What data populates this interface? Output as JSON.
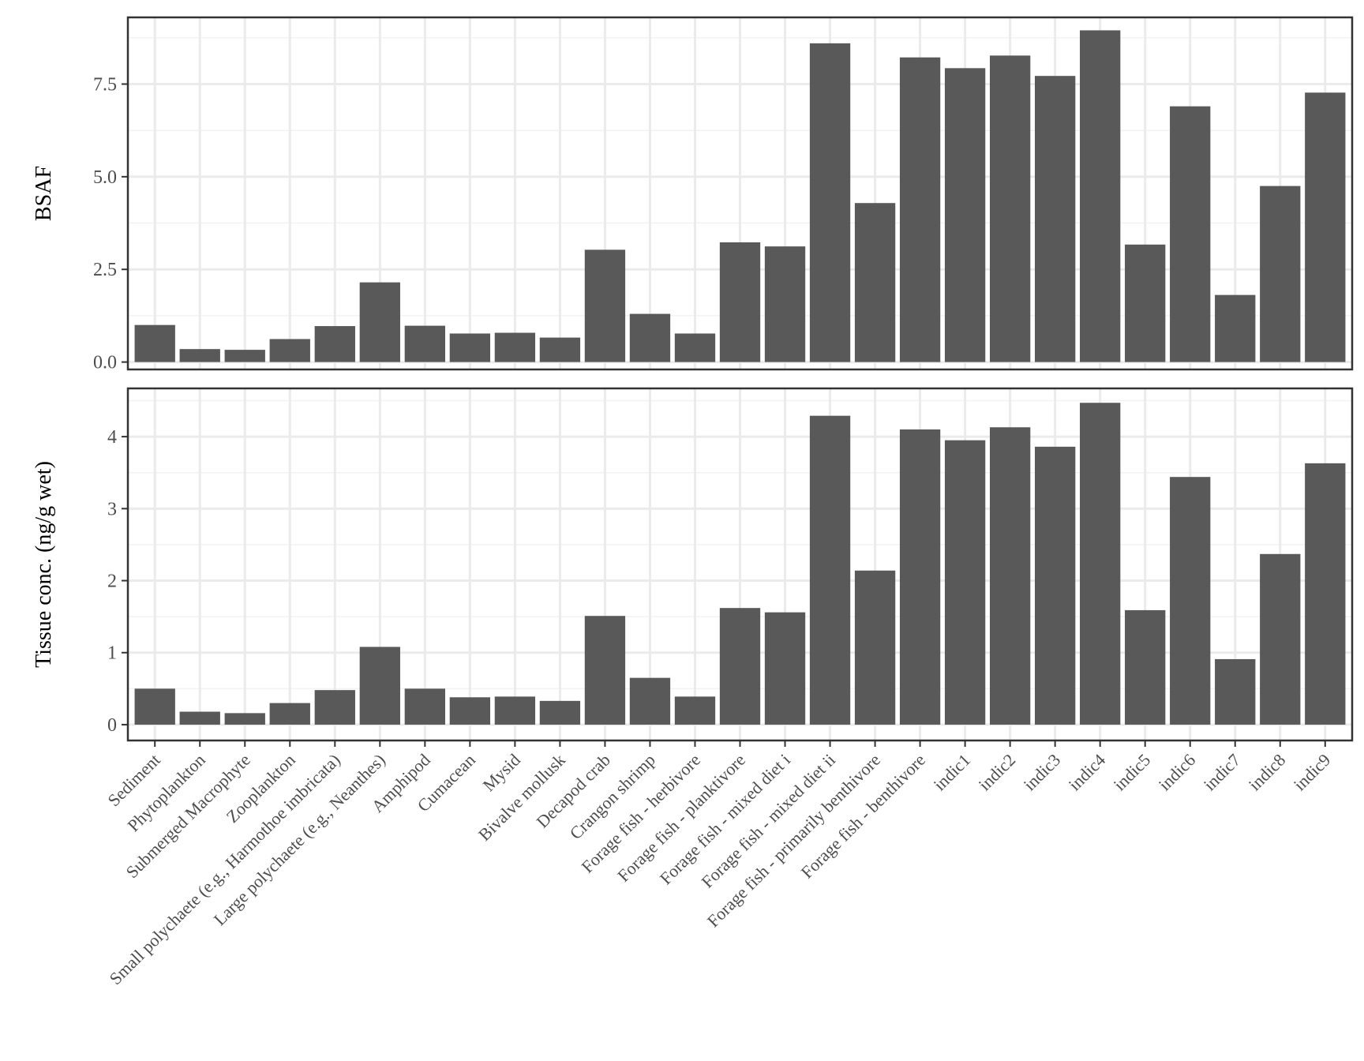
{
  "chart_data": [
    {
      "type": "bar",
      "ylabel": "BSAF",
      "ylim": [
        -0.2,
        9.3
      ],
      "yticks": [
        0.0,
        2.5,
        5.0,
        7.5
      ],
      "ytick_labels": [
        "0.0",
        "2.5",
        "5.0",
        "7.5"
      ],
      "grid": true,
      "bar_color": "#595959",
      "categories": [
        "Sediment",
        "Phytoplankton",
        "Submerged Macrophyte",
        "Zooplankton",
        "Small polychaete (e.g., Harmothoe imbricata)",
        "Large polychaete (e.g., Neanthes)",
        "Amphipod",
        "Cumacean",
        "Mysid",
        "Bivalve mollusk",
        "Decapod crab",
        "Crangon shrimp",
        "Forage fish - herbivore",
        "Forage fish - planktivore",
        "Forage fish - mixed diet i",
        "Forage fish - mixed diet ii",
        "Forage fish  - primarily benthivore",
        "Forage fish - benthivore",
        "indic1",
        "indic2",
        "indic3",
        "indic4",
        "indic5",
        "indic6",
        "indic7",
        "indic8",
        "indic9"
      ],
      "values": [
        1.0,
        0.35,
        0.33,
        0.62,
        0.97,
        2.15,
        0.98,
        0.77,
        0.79,
        0.66,
        3.03,
        1.3,
        0.77,
        3.23,
        3.12,
        8.6,
        4.29,
        8.22,
        7.93,
        8.27,
        7.72,
        8.95,
        3.17,
        6.9,
        1.81,
        4.75,
        7.27
      ]
    },
    {
      "type": "bar",
      "ylabel": "Tissue conc. (ng/g wet)",
      "ylim": [
        -0.22,
        4.67
      ],
      "yticks": [
        0,
        1,
        2,
        3,
        4
      ],
      "ytick_labels": [
        "0",
        "1",
        "2",
        "3",
        "4"
      ],
      "grid": true,
      "bar_color": "#595959",
      "categories": [
        "Sediment",
        "Phytoplankton",
        "Submerged Macrophyte",
        "Zooplankton",
        "Small polychaete (e.g., Harmothoe imbricata)",
        "Large polychaete (e.g., Neanthes)",
        "Amphipod",
        "Cumacean",
        "Mysid",
        "Bivalve mollusk",
        "Decapod crab",
        "Crangon shrimp",
        "Forage fish - herbivore",
        "Forage fish - planktivore",
        "Forage fish - mixed diet i",
        "Forage fish - mixed diet ii",
        "Forage fish  - primarily benthivore",
        "Forage fish - benthivore",
        "indic1",
        "indic2",
        "indic3",
        "indic4",
        "indic5",
        "indic6",
        "indic7",
        "indic8",
        "indic9"
      ],
      "values": [
        0.5,
        0.18,
        0.16,
        0.3,
        0.48,
        1.08,
        0.5,
        0.38,
        0.39,
        0.33,
        1.51,
        0.65,
        0.39,
        1.62,
        1.56,
        4.29,
        2.14,
        4.1,
        3.95,
        4.13,
        3.86,
        4.47,
        1.59,
        3.44,
        0.91,
        2.37,
        3.63
      ]
    }
  ]
}
